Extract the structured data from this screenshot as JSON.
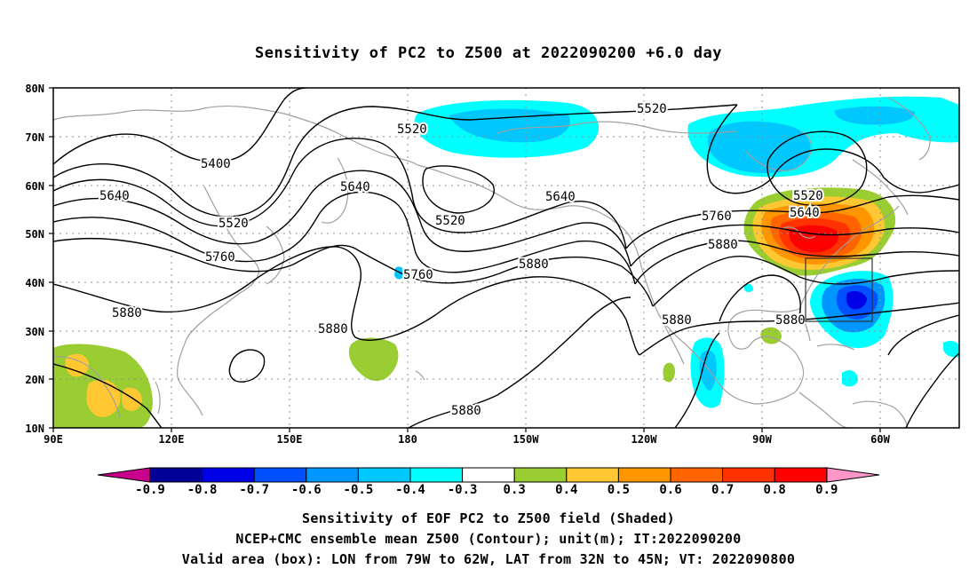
{
  "title": "Sensitivity of PC2 to Z500 at 2022090200 +6.0 day",
  "lat_labels": [
    "80N",
    "70N",
    "60N",
    "50N",
    "40N",
    "30N",
    "20N",
    "10N"
  ],
  "lon_labels": [
    "90E",
    "120E",
    "150E",
    "180",
    "150W",
    "120W",
    "90W",
    "60W"
  ],
  "colorbar": {
    "labels": [
      "-0.9",
      "-0.8",
      "-0.7",
      "-0.6",
      "-0.5",
      "-0.4",
      "-0.3",
      "0.3",
      "0.4",
      "0.5",
      "0.6",
      "0.7",
      "0.8",
      "0.9"
    ],
    "colors": [
      "#000096",
      "#0000e6",
      "#0050ff",
      "#0096ff",
      "#00c8ff",
      "#00ffff",
      "#ffffff",
      "#9acd32",
      "#ffc832",
      "#ff9600",
      "#ff6400",
      "#ff3200",
      "#ff0000"
    ],
    "under_color": "#c8008c",
    "over_color": "#ff96c8"
  },
  "contour_labels": {
    "c5520a": "5520",
    "c5520b": "5520",
    "c5520c": "5520",
    "c5520d": "5520",
    "c5520e": "5520",
    "c5400": "5400",
    "c5640a": "5640",
    "c5640b": "5640",
    "c5640c": "5640",
    "c5640d": "5640",
    "c5760a": "5760",
    "c5760b": "5760",
    "c5760c": "5760",
    "c5880a": "5880",
    "c5880b": "5880",
    "c5880c": "5880",
    "c5880d": "5880",
    "c5880e": "5880",
    "c5880f": "5880",
    "c5880g": "5880"
  },
  "caption": {
    "line1": "Sensitivity of EOF PC2 to Z500 field (Shaded)",
    "line2": "NCEP+CMC ensemble mean Z500 (Contour); unit(m); IT:2022090200",
    "line3": "Valid area (box): LON from 79W to 62W, LAT from 32N to 45N; VT: 2022090800"
  },
  "valid_box": {
    "lon_w": -79,
    "lon_e": -62,
    "lat_s": 32,
    "lat_n": 45
  }
}
